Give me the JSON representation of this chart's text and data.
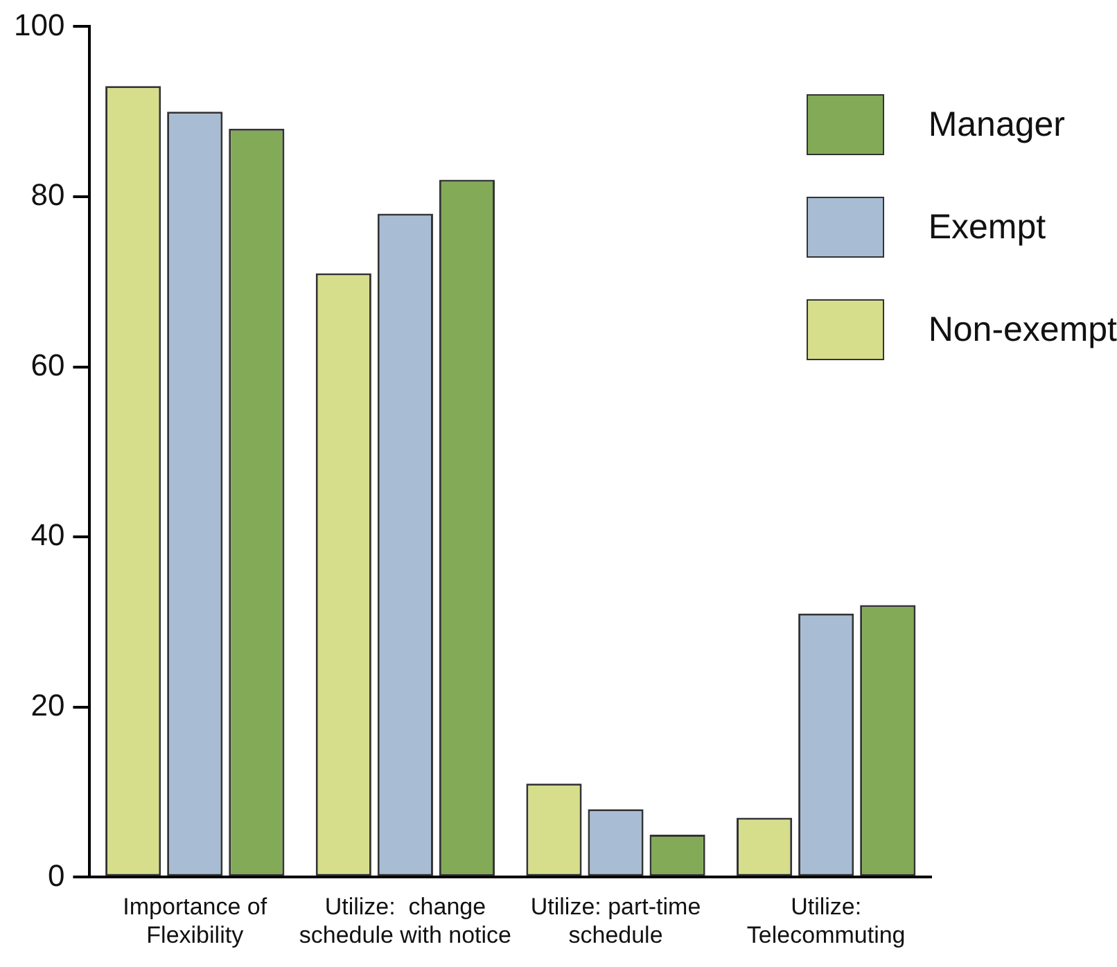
{
  "chart_data": {
    "type": "bar",
    "categories": [
      "Importance of\nFlexibility",
      "Utilize:  change\nschedule with notice",
      "Utilize: part-time\nschedule",
      "Utilize:\nTelecommuting"
    ],
    "series": [
      {
        "name": "Non-exempt",
        "color": "#d6de8c",
        "values": [
          93,
          71,
          11,
          7
        ]
      },
      {
        "name": "Exempt",
        "color": "#a8bcd4",
        "values": [
          90,
          78,
          8,
          31
        ]
      },
      {
        "name": "Manager",
        "color": "#83aa57",
        "values": [
          88,
          82,
          5,
          32
        ]
      }
    ],
    "ylim": [
      0,
      100
    ],
    "yticks": [
      0,
      20,
      40,
      60,
      80,
      100
    ],
    "grid": false,
    "legend": "top right"
  }
}
